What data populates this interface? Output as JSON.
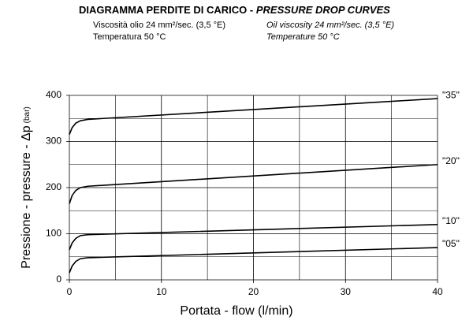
{
  "chart_data": {
    "type": "line",
    "title": "DIAGRAMMA PERDITE DI CARICO - ",
    "title_en": "PRESSURE DROP CURVES",
    "notes_it": [
      "Viscosità olio 24 mm²/sec. (3,5 °E)",
      "Temperatura 50 °C"
    ],
    "notes_en": [
      "Oil viscosity 24 mm²/sec. (3,5 °E)",
      "Temperature 50 °C"
    ],
    "xlabel": "Portata - flow (l/min)",
    "ylabel": "Pressione - pressure - Δp",
    "ylabel_unit": "(bar)",
    "x": [
      0,
      0.3,
      0.7,
      1.2,
      2,
      40
    ],
    "series": [
      {
        "name": "\"35\"",
        "color": "#000000",
        "values": [
          315,
          330,
          340,
          345,
          348,
          393
        ]
      },
      {
        "name": "\"20\"",
        "color": "#000000",
        "values": [
          165,
          183,
          194,
          200,
          203,
          250
        ]
      },
      {
        "name": "\"10\"",
        "color": "#000000",
        "values": [
          65,
          80,
          90,
          96,
          98,
          120
        ]
      },
      {
        "name": "\"05\"",
        "color": "#000000",
        "values": [
          15,
          30,
          40,
          46,
          48,
          70
        ]
      }
    ],
    "xlim": [
      0,
      40
    ],
    "xticks": [
      0,
      10,
      20,
      30,
      40
    ],
    "ylim": [
      0,
      400
    ],
    "yticks": [
      0,
      100,
      200,
      300,
      400
    ],
    "xgrid": [
      5,
      15,
      25,
      35
    ],
    "ygrid": [
      50,
      150,
      250,
      350
    ],
    "grid": true
  }
}
